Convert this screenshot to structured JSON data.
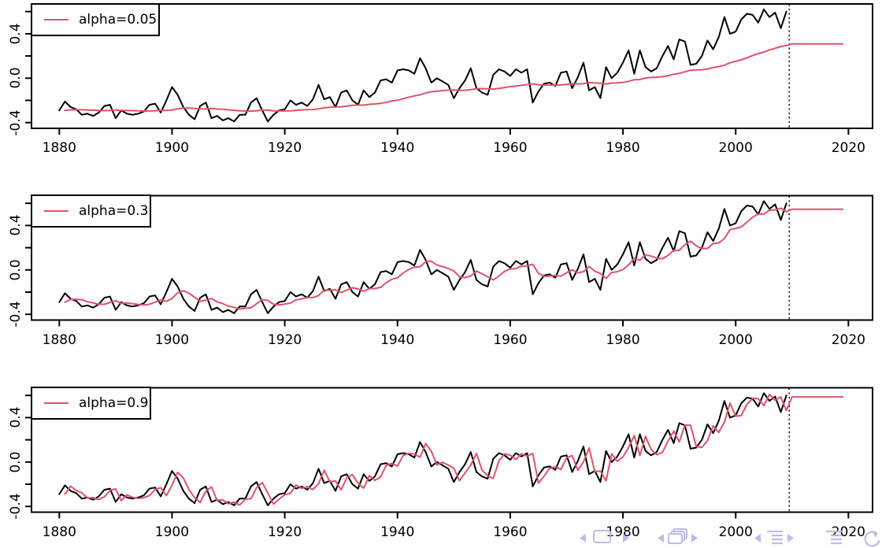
{
  "chart_data": {
    "type": "line",
    "title": "",
    "xlabel": "",
    "ylabel": "",
    "grid": false,
    "legend_position": "topleft",
    "x_ticks": [
      "1880",
      "1900",
      "1920",
      "1940",
      "1960",
      "1980",
      "2000",
      "2020"
    ],
    "x_tick_years": [
      1880,
      1900,
      1920,
      1940,
      1960,
      1980,
      2000,
      2020
    ],
    "y_ticks_all": [
      0.6,
      0.4,
      0.2,
      0.0,
      -0.2,
      -0.4
    ],
    "y_tick_labels": [
      {
        "value": -0.4,
        "label": "-0.4"
      },
      {
        "value": 0.0,
        "label": "0.0"
      },
      {
        "value": 0.4,
        "label": "0.4"
      }
    ],
    "xlim": [
      1874.5,
      2024.5
    ],
    "ylim": [
      -0.453,
      0.669
    ],
    "years": {
      "start": 1880,
      "end": 2009,
      "step": 1
    },
    "values": [
      -0.29,
      -0.21,
      -0.26,
      -0.28,
      -0.33,
      -0.32,
      -0.34,
      -0.31,
      -0.25,
      -0.24,
      -0.36,
      -0.29,
      -0.32,
      -0.33,
      -0.32,
      -0.3,
      -0.24,
      -0.23,
      -0.31,
      -0.2,
      -0.08,
      -0.15,
      -0.26,
      -0.33,
      -0.37,
      -0.25,
      -0.22,
      -0.36,
      -0.34,
      -0.38,
      -0.36,
      -0.39,
      -0.33,
      -0.33,
      -0.22,
      -0.18,
      -0.29,
      -0.39,
      -0.33,
      -0.29,
      -0.28,
      -0.2,
      -0.24,
      -0.22,
      -0.25,
      -0.19,
      -0.06,
      -0.19,
      -0.17,
      -0.26,
      -0.13,
      -0.11,
      -0.2,
      -0.24,
      -0.11,
      -0.17,
      -0.13,
      -0.02,
      -0.01,
      -0.04,
      0.07,
      0.08,
      0.07,
      0.04,
      0.18,
      0.09,
      -0.04,
      0.0,
      -0.03,
      -0.06,
      -0.18,
      -0.09,
      -0.02,
      0.09,
      -0.09,
      -0.13,
      -0.15,
      0.03,
      0.08,
      0.06,
      0.02,
      0.08,
      0.05,
      0.08,
      -0.22,
      -0.12,
      -0.05,
      -0.04,
      -0.07,
      0.05,
      0.06,
      -0.09,
      0.01,
      0.14,
      -0.11,
      -0.08,
      -0.18,
      0.1,
      0.0,
      0.05,
      0.14,
      0.25,
      0.04,
      0.25,
      0.1,
      0.06,
      0.09,
      0.2,
      0.29,
      0.17,
      0.35,
      0.33,
      0.12,
      0.13,
      0.2,
      0.34,
      0.26,
      0.37,
      0.55,
      0.4,
      0.42,
      0.53,
      0.58,
      0.57,
      0.5,
      0.62,
      0.55,
      0.59,
      0.45,
      0.6
    ],
    "smoothing": "simple-exponential (fitted one-step-ahead, level starts at first value)",
    "panels": [
      {
        "legend": "alpha=0.05",
        "alpha": 0.05
      },
      {
        "legend": "alpha=0.3",
        "alpha": 0.3
      },
      {
        "legend": "alpha=0.9",
        "alpha": 0.9
      }
    ],
    "forecast": {
      "start": 2010,
      "end": 2019,
      "cutoff_line": 2009.5,
      "style": "flat-at-last-level"
    },
    "colors": {
      "data_series": "#000000",
      "smoothed_series": "#DF536B",
      "cutoff_line": "#1a1a1a",
      "axis": "#000000"
    }
  },
  "navigation_bar": {
    "color": "#b9b9e8",
    "items": [
      {
        "icon": "prev-slide-arrow-icon"
      },
      {
        "icon": "slide-frame-icon"
      },
      {
        "icon": "next-slide-arrow-icon"
      },
      {
        "icon": "prev-frame-arrow-icon"
      },
      {
        "icon": "frame-stack-icon"
      },
      {
        "icon": "next-frame-arrow-icon"
      },
      {
        "icon": "prev-subsection-arrow-icon"
      },
      {
        "icon": "subsection-list-icon"
      },
      {
        "icon": "next-subsection-arrow-icon"
      },
      {
        "icon": "section-list-icon"
      },
      {
        "icon": "back-history-icon"
      }
    ]
  }
}
